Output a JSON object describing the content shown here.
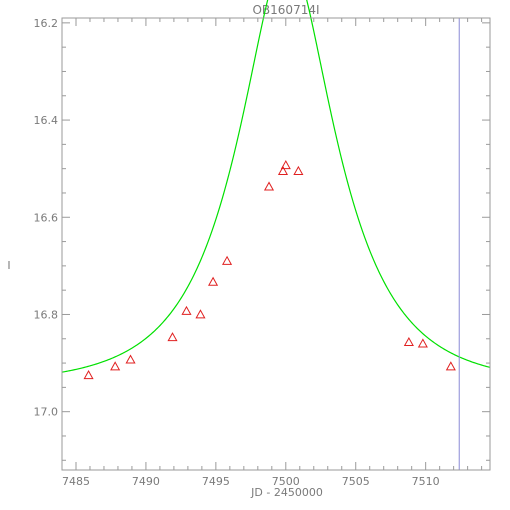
{
  "chart_data": {
    "type": "scatter",
    "title": "OB160714I",
    "xlabel": "JD - 2450000",
    "ylabel": "I",
    "xlim": [
      7484.0,
      7514.6
    ],
    "ylim": [
      17.12,
      16.19
    ],
    "y_inverted": true,
    "grid": false,
    "x_ticks": [
      7485,
      7490,
      7495,
      7500,
      7505,
      7510
    ],
    "x_tick_labels": [
      "7485",
      "7490",
      "7495",
      "7500",
      "7505",
      "7510"
    ],
    "y_ticks": [
      16.2,
      16.4,
      16.6,
      16.8,
      17.0
    ],
    "y_tick_labels": [
      "16.2",
      "16.4",
      "16.6",
      "16.8",
      "17.0"
    ],
    "series": [
      {
        "marker": "triangle-open",
        "color": "#e02020",
        "x": [
          7485.9,
          7487.8,
          7488.9,
          7491.9,
          7492.9,
          7493.9,
          7494.8,
          7495.8,
          7498.8,
          7499.8,
          7500.0,
          7500.9,
          7508.8,
          7509.8,
          7511.8
        ],
        "y": [
          16.925,
          16.907,
          16.893,
          16.847,
          16.793,
          16.8,
          16.733,
          16.69,
          16.537,
          16.505,
          16.493,
          16.505,
          16.857,
          16.86,
          16.907
        ]
      },
      {
        "type": "line",
        "color": "#00e000",
        "model": {
          "t0": 7500.1,
          "tE": 6.1,
          "u0": 0.48,
          "baseline": 16.945
        }
      }
    ],
    "vertical_line": {
      "x": 7512.4,
      "color": "#8a8ad6"
    }
  }
}
